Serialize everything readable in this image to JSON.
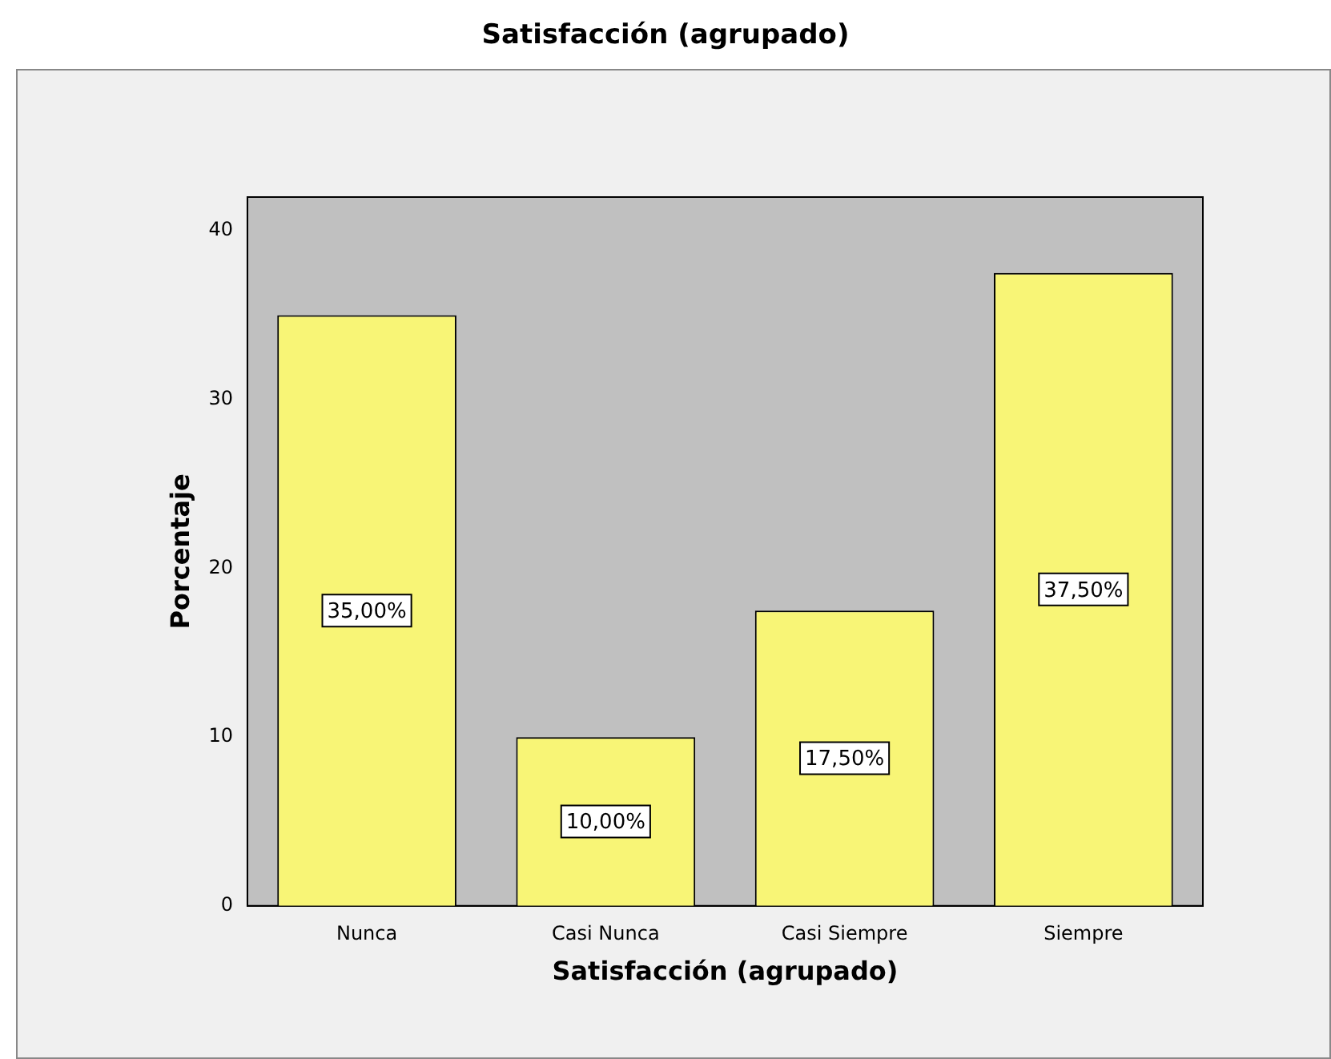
{
  "chart_data": {
    "type": "bar",
    "title": "Satisfacción (agrupado)",
    "xlabel": "Satisfacción (agrupado)",
    "ylabel": "Porcentaje",
    "categories": [
      "Nunca",
      "Casi Nunca",
      "Casi Siempre",
      "Siempre"
    ],
    "values": [
      35,
      10,
      17.5,
      37.5
    ],
    "value_labels": [
      "35,00%",
      "10,00%",
      "17,50%",
      "37,50%"
    ],
    "color": "#f8f576",
    "ylim": [
      0,
      42
    ],
    "yticks": [
      0,
      10,
      20,
      30,
      40
    ],
    "grid": false,
    "legend": false
  }
}
